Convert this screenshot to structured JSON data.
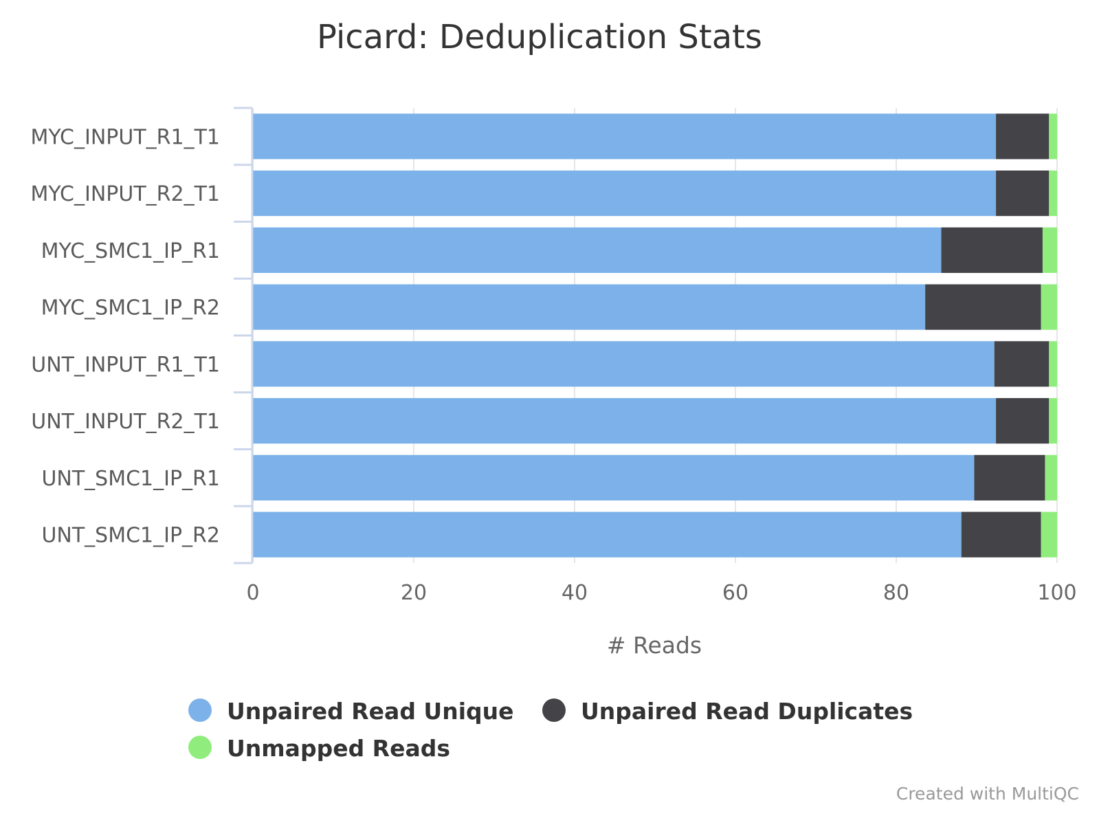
{
  "chart_data": {
    "type": "bar",
    "orientation": "horizontal",
    "stacked": "percent",
    "title": "Picard: Deduplication Stats",
    "xlabel": "# Reads",
    "ylabel": "",
    "xlim": [
      0,
      100
    ],
    "ticks": [
      "0",
      "20",
      "40",
      "60",
      "80",
      "100"
    ],
    "tick_values": [
      0,
      20,
      40,
      60,
      80,
      100
    ],
    "grid": true,
    "legend_position": "bottom",
    "categories": [
      "MYC_INPUT_R1_T1",
      "MYC_INPUT_R2_T1",
      "MYC_SMC1_IP_R1",
      "MYC_SMC1_IP_R2",
      "UNT_INPUT_R1_T1",
      "UNT_INPUT_R2_T1",
      "UNT_SMC1_IP_R1",
      "UNT_SMC1_IP_R2"
    ],
    "series": [
      {
        "name": "Unpaired Read Unique",
        "color": "#7cb2e9",
        "values": [
          92.4,
          92.4,
          85.6,
          83.6,
          92.2,
          92.4,
          89.7,
          88.1
        ]
      },
      {
        "name": "Unpaired Read Duplicates",
        "color": "#434348",
        "values": [
          6.6,
          6.6,
          12.6,
          14.4,
          6.8,
          6.6,
          8.8,
          9.9
        ]
      },
      {
        "name": "Unmapped Reads",
        "color": "#90ed7d",
        "values": [
          1.0,
          1.0,
          1.8,
          2.0,
          1.0,
          1.0,
          1.5,
          2.0
        ]
      }
    ]
  },
  "credits": "Created with MultiQC"
}
